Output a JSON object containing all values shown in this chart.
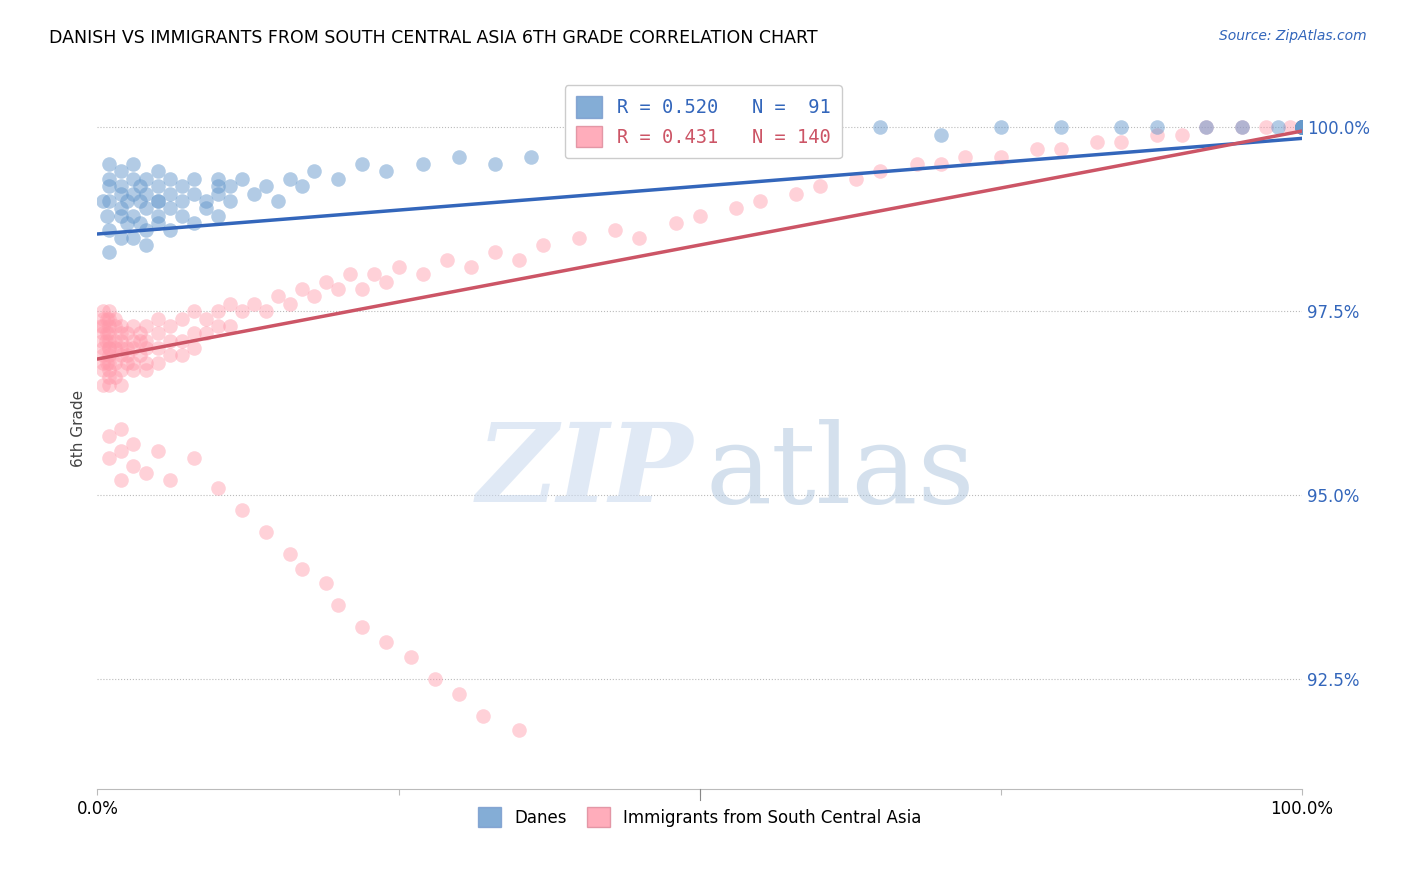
{
  "title": "DANISH VS IMMIGRANTS FROM SOUTH CENTRAL ASIA 6TH GRADE CORRELATION CHART",
  "source": "Source: ZipAtlas.com",
  "ylabel": "6th Grade",
  "y_ticks": [
    92.5,
    95.0,
    97.5,
    100.0
  ],
  "y_tick_labels": [
    "92.5%",
    "95.0%",
    "97.5%",
    "100.0%"
  ],
  "xlim": [
    0.0,
    1.0
  ],
  "ylim": [
    91.0,
    100.8
  ],
  "blue_R": 0.52,
  "blue_N": 91,
  "pink_R": 0.431,
  "pink_N": 140,
  "blue_color": "#6699CC",
  "pink_color": "#FF99AA",
  "blue_line_color": "#3366BB",
  "pink_line_color": "#CC5566",
  "legend_danes": "Danes",
  "legend_immigrants": "Immigrants from South Central Asia",
  "blue_trend": [
    98.55,
    99.85
  ],
  "pink_trend": [
    96.85,
    99.95
  ],
  "blue_x": [
    0.005,
    0.008,
    0.01,
    0.01,
    0.01,
    0.01,
    0.01,
    0.01,
    0.02,
    0.02,
    0.02,
    0.02,
    0.02,
    0.02,
    0.025,
    0.025,
    0.03,
    0.03,
    0.03,
    0.03,
    0.03,
    0.035,
    0.035,
    0.035,
    0.04,
    0.04,
    0.04,
    0.04,
    0.04,
    0.05,
    0.05,
    0.05,
    0.05,
    0.05,
    0.05,
    0.06,
    0.06,
    0.06,
    0.06,
    0.07,
    0.07,
    0.07,
    0.08,
    0.08,
    0.08,
    0.09,
    0.09,
    0.1,
    0.1,
    0.1,
    0.1,
    0.11,
    0.11,
    0.12,
    0.13,
    0.14,
    0.15,
    0.16,
    0.17,
    0.18,
    0.2,
    0.22,
    0.24,
    0.27,
    0.3,
    0.33,
    0.36,
    0.4,
    0.45,
    0.52,
    0.6,
    0.65,
    0.7,
    0.75,
    0.8,
    0.85,
    0.88,
    0.92,
    0.95,
    0.98,
    1.0,
    1.0,
    1.0,
    1.0,
    1.0,
    1.0,
    1.0,
    1.0,
    1.0,
    1.0,
    1.0
  ],
  "blue_y": [
    99.0,
    98.8,
    99.2,
    98.6,
    99.5,
    99.0,
    98.3,
    99.3,
    99.1,
    98.8,
    99.4,
    98.5,
    99.2,
    98.9,
    99.0,
    98.7,
    99.3,
    98.5,
    99.1,
    98.8,
    99.5,
    99.0,
    98.7,
    99.2,
    98.9,
    99.3,
    98.6,
    99.1,
    98.4,
    99.0,
    98.8,
    99.4,
    98.7,
    99.2,
    99.0,
    98.9,
    99.3,
    98.6,
    99.1,
    99.0,
    98.8,
    99.2,
    99.1,
    98.7,
    99.3,
    99.0,
    98.9,
    99.2,
    98.8,
    99.1,
    99.3,
    99.0,
    99.2,
    99.3,
    99.1,
    99.2,
    99.0,
    99.3,
    99.2,
    99.4,
    99.3,
    99.5,
    99.4,
    99.5,
    99.6,
    99.5,
    99.6,
    99.7,
    99.7,
    99.8,
    99.8,
    100.0,
    99.9,
    100.0,
    100.0,
    100.0,
    100.0,
    100.0,
    100.0,
    100.0,
    100.0,
    100.0,
    100.0,
    100.0,
    100.0,
    100.0,
    100.0,
    100.0,
    100.0,
    100.0,
    100.0
  ],
  "pink_x": [
    0.003,
    0.004,
    0.005,
    0.005,
    0.005,
    0.005,
    0.005,
    0.005,
    0.005,
    0.005,
    0.005,
    0.007,
    0.008,
    0.008,
    0.008,
    0.01,
    0.01,
    0.01,
    0.01,
    0.01,
    0.01,
    0.01,
    0.01,
    0.01,
    0.01,
    0.01,
    0.01,
    0.015,
    0.015,
    0.015,
    0.015,
    0.015,
    0.015,
    0.02,
    0.02,
    0.02,
    0.02,
    0.02,
    0.02,
    0.02,
    0.025,
    0.025,
    0.025,
    0.025,
    0.03,
    0.03,
    0.03,
    0.03,
    0.03,
    0.035,
    0.035,
    0.035,
    0.04,
    0.04,
    0.04,
    0.04,
    0.04,
    0.05,
    0.05,
    0.05,
    0.05,
    0.06,
    0.06,
    0.06,
    0.07,
    0.07,
    0.07,
    0.08,
    0.08,
    0.08,
    0.09,
    0.09,
    0.1,
    0.1,
    0.11,
    0.11,
    0.12,
    0.13,
    0.14,
    0.15,
    0.16,
    0.17,
    0.18,
    0.19,
    0.2,
    0.21,
    0.22,
    0.23,
    0.24,
    0.25,
    0.27,
    0.29,
    0.31,
    0.33,
    0.35,
    0.37,
    0.4,
    0.43,
    0.45,
    0.48,
    0.5,
    0.53,
    0.55,
    0.58,
    0.6,
    0.63,
    0.65,
    0.68,
    0.7,
    0.72,
    0.75,
    0.78,
    0.8,
    0.83,
    0.85,
    0.88,
    0.9,
    0.92,
    0.95,
    0.97,
    0.99,
    1.0,
    1.0,
    1.0,
    1.0,
    1.0,
    1.0,
    1.0,
    1.0,
    1.0,
    1.0,
    1.0,
    1.0,
    1.0,
    1.0,
    1.0,
    1.0,
    1.0,
    1.0,
    1.0
  ],
  "pink_y": [
    97.3,
    97.1,
    97.5,
    96.8,
    97.0,
    97.2,
    96.5,
    97.4,
    96.9,
    97.3,
    96.7,
    97.1,
    97.4,
    96.8,
    97.2,
    97.0,
    96.5,
    97.3,
    96.8,
    97.1,
    97.5,
    96.7,
    97.2,
    96.9,
    97.4,
    97.0,
    96.6,
    97.1,
    96.8,
    97.3,
    97.0,
    96.6,
    97.4,
    97.0,
    96.7,
    97.2,
    96.5,
    97.3,
    96.9,
    97.1,
    97.0,
    96.8,
    97.2,
    96.9,
    97.1,
    96.7,
    97.3,
    97.0,
    96.8,
    97.1,
    96.9,
    97.2,
    97.0,
    96.8,
    97.3,
    96.7,
    97.1,
    97.0,
    96.8,
    97.2,
    97.4,
    97.1,
    96.9,
    97.3,
    97.1,
    97.4,
    96.9,
    97.2,
    97.5,
    97.0,
    97.2,
    97.4,
    97.3,
    97.5,
    97.3,
    97.6,
    97.5,
    97.6,
    97.5,
    97.7,
    97.6,
    97.8,
    97.7,
    97.9,
    97.8,
    98.0,
    97.8,
    98.0,
    97.9,
    98.1,
    98.0,
    98.2,
    98.1,
    98.3,
    98.2,
    98.4,
    98.5,
    98.6,
    98.5,
    98.7,
    98.8,
    98.9,
    99.0,
    99.1,
    99.2,
    99.3,
    99.4,
    99.5,
    99.5,
    99.6,
    99.6,
    99.7,
    99.7,
    99.8,
    99.8,
    99.9,
    99.9,
    100.0,
    100.0,
    100.0,
    100.0,
    100.0,
    100.0,
    100.0,
    100.0,
    100.0,
    100.0,
    100.0,
    100.0,
    100.0,
    100.0,
    100.0,
    100.0,
    100.0,
    100.0,
    100.0,
    100.0,
    100.0,
    100.0,
    100.0
  ],
  "pink_low_x": [
    0.01,
    0.01,
    0.02,
    0.02,
    0.02,
    0.03,
    0.03,
    0.04,
    0.05,
    0.06,
    0.08,
    0.1,
    0.12,
    0.14,
    0.16,
    0.17,
    0.19,
    0.2,
    0.22,
    0.24,
    0.26,
    0.28,
    0.3,
    0.32,
    0.35
  ],
  "pink_low_y": [
    95.5,
    95.8,
    95.2,
    95.6,
    95.9,
    95.4,
    95.7,
    95.3,
    95.6,
    95.2,
    95.5,
    95.1,
    94.8,
    94.5,
    94.2,
    94.0,
    93.8,
    93.5,
    93.2,
    93.0,
    92.8,
    92.5,
    92.3,
    92.0,
    91.8
  ]
}
